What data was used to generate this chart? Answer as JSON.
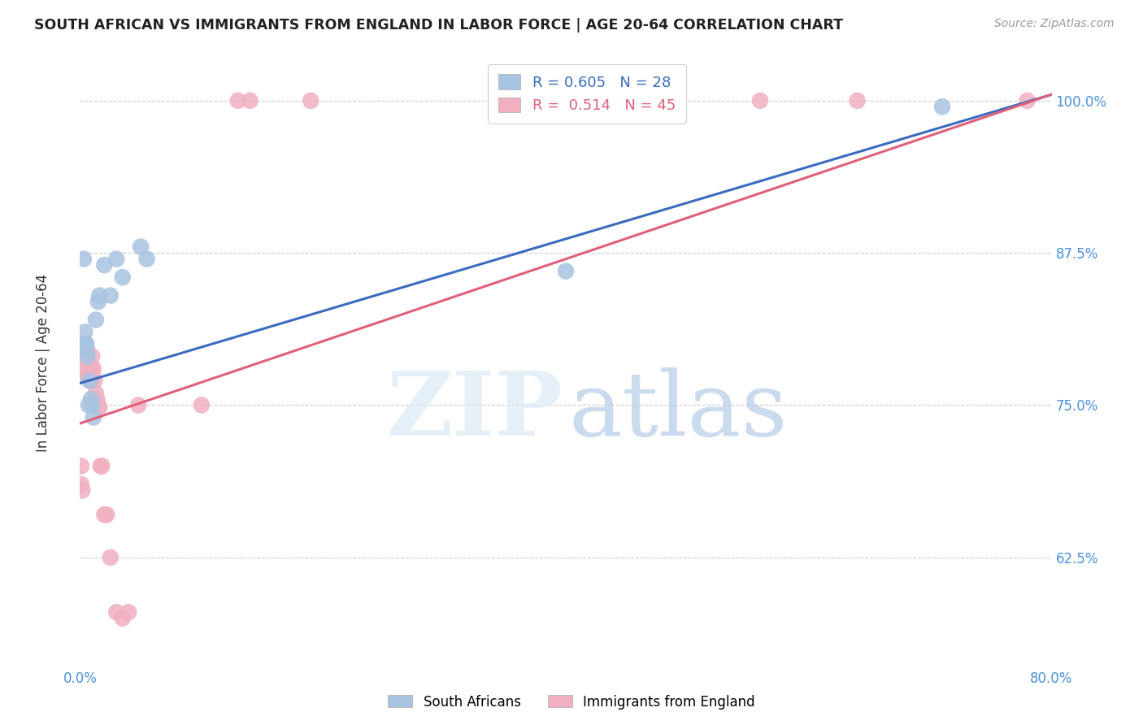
{
  "title": "SOUTH AFRICAN VS IMMIGRANTS FROM ENGLAND IN LABOR FORCE | AGE 20-64 CORRELATION CHART",
  "source": "Source: ZipAtlas.com",
  "ylabel": "In Labor Force | Age 20-64",
  "y_tick_labels": [
    "62.5%",
    "75.0%",
    "87.5%",
    "100.0%"
  ],
  "y_tick_values": [
    0.625,
    0.75,
    0.875,
    1.0
  ],
  "xlim": [
    0.0,
    0.8
  ],
  "ylim": [
    0.535,
    1.035
  ],
  "legend_labels": [
    "South Africans",
    "Immigrants from England"
  ],
  "R_blue": 0.605,
  "N_blue": 28,
  "R_pink": 0.514,
  "N_pink": 45,
  "blue_color": "#a8c4e0",
  "blue_line_color": "#3a6bbf",
  "pink_color": "#f0b0c0",
  "pink_line_color": "#e0607a",
  "blue_line_x": [
    0.0,
    0.8
  ],
  "blue_line_y": [
    0.768,
    1.005
  ],
  "pink_line_x": [
    0.0,
    0.8
  ],
  "pink_line_y": [
    0.735,
    1.005
  ],
  "blue_points_x": [
    0.001,
    0.001,
    0.002,
    0.002,
    0.003,
    0.003,
    0.004,
    0.004,
    0.005,
    0.005,
    0.005,
    0.006,
    0.007,
    0.008,
    0.009,
    0.01,
    0.011,
    0.013,
    0.015,
    0.016,
    0.02,
    0.025,
    0.03,
    0.035,
    0.05,
    0.055,
    0.4,
    0.71
  ],
  "blue_points_y": [
    0.8,
    0.795,
    0.8,
    0.8,
    0.87,
    0.8,
    0.81,
    0.8,
    0.8,
    0.8,
    0.795,
    0.79,
    0.75,
    0.77,
    0.755,
    0.75,
    0.74,
    0.82,
    0.835,
    0.84,
    0.865,
    0.84,
    0.87,
    0.855,
    0.88,
    0.87,
    0.86,
    0.995
  ],
  "pink_points_x": [
    0.001,
    0.001,
    0.002,
    0.002,
    0.002,
    0.003,
    0.003,
    0.004,
    0.004,
    0.004,
    0.005,
    0.005,
    0.005,
    0.006,
    0.006,
    0.007,
    0.007,
    0.008,
    0.009,
    0.009,
    0.01,
    0.01,
    0.011,
    0.012,
    0.013,
    0.014,
    0.015,
    0.016,
    0.017,
    0.018,
    0.02,
    0.022,
    0.025,
    0.03,
    0.035,
    0.04,
    0.048,
    0.1,
    0.13,
    0.14,
    0.19,
    0.35,
    0.56,
    0.64,
    0.78
  ],
  "pink_points_y": [
    0.7,
    0.685,
    0.8,
    0.79,
    0.68,
    0.8,
    0.79,
    0.8,
    0.79,
    0.775,
    0.8,
    0.79,
    0.78,
    0.795,
    0.785,
    0.785,
    0.775,
    0.78,
    0.78,
    0.77,
    0.79,
    0.775,
    0.78,
    0.77,
    0.76,
    0.755,
    0.75,
    0.748,
    0.7,
    0.7,
    0.66,
    0.66,
    0.625,
    0.58,
    0.575,
    0.58,
    0.75,
    0.75,
    1.0,
    1.0,
    1.0,
    1.0,
    1.0,
    1.0,
    1.0
  ]
}
